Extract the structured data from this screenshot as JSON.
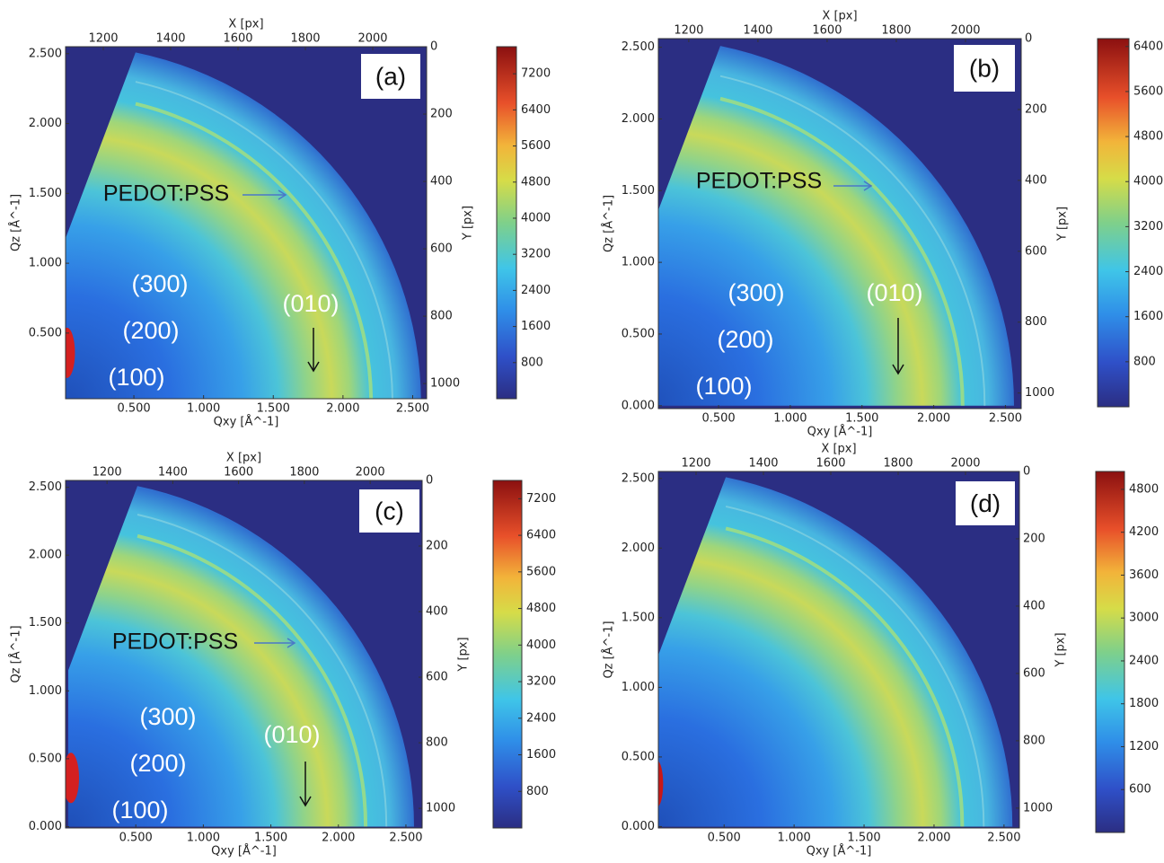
{
  "chart_data": [
    {
      "type": "heatmap",
      "title": "(a)",
      "xlabel": "Qxy [Å^-1]",
      "ylabel": "Qz [Å^-1]",
      "x2label": "X [px]",
      "y2label": "Y [px]",
      "xlim": [
        0.01,
        2.6
      ],
      "ylim": [
        0.03,
        2.55
      ],
      "xticks": [
        {
          "value": 0.5,
          "label": "0.500"
        },
        {
          "value": 1,
          "label": "1.000"
        },
        {
          "value": 1.5,
          "label": "1.500"
        },
        {
          "value": 2,
          "label": "2.000"
        },
        {
          "value": 2.5,
          "label": "2.500"
        }
      ],
      "yticks": [
        {
          "value": 0.5,
          "label": "0.500"
        },
        {
          "value": 1,
          "label": "1.000"
        },
        {
          "value": 1.5,
          "label": "1.500"
        },
        {
          "value": 2,
          "label": "2.000"
        },
        {
          "value": 2.5,
          "label": "2.500"
        }
      ],
      "x2lim": [
        1088,
        2160
      ],
      "x2ticks": [
        1200,
        1400,
        1600,
        1800,
        2000
      ],
      "y2lim": [
        1045,
        0
      ],
      "y2ticks": [
        0,
        200,
        400,
        600,
        800,
        1000
      ],
      "clim": [
        0,
        7800
      ],
      "cticks": [
        800,
        1600,
        2400,
        3200,
        4000,
        4800,
        5600,
        6400,
        7200
      ],
      "annotations": [
        "PEDOT:PSS",
        "(300)",
        "(200)",
        "(100)",
        "(010)"
      ]
    },
    {
      "type": "heatmap",
      "title": "(b)",
      "xlabel": "Qxy [Å^-1]",
      "ylabel": "Qz [Å^-1]",
      "x2label": "X [px]",
      "y2label": "Y [px]",
      "xlim": [
        0.08,
        2.61
      ],
      "ylim": [
        -0.02,
        2.56
      ],
      "xticks": [
        {
          "value": 0.5,
          "label": "0.500"
        },
        {
          "value": 1,
          "label": "1.000"
        },
        {
          "value": 1.5,
          "label": "1.500"
        },
        {
          "value": 2,
          "label": "2.000"
        },
        {
          "value": 2.5,
          "label": "2.500"
        }
      ],
      "yticks": [
        {
          "value": 0,
          "label": "0.000"
        },
        {
          "value": 0.5,
          "label": "0.500"
        },
        {
          "value": 1,
          "label": "1.000"
        },
        {
          "value": 1.5,
          "label": "1.500"
        },
        {
          "value": 2,
          "label": "2.000"
        },
        {
          "value": 2.5,
          "label": "2.500"
        }
      ],
      "x2lim": [
        1112,
        2161
      ],
      "x2ticks": [
        1200,
        1400,
        1600,
        1800,
        2000
      ],
      "y2lim": [
        1044,
        0
      ],
      "y2ticks": [
        0,
        200,
        400,
        600,
        800,
        1000
      ],
      "clim": [
        0,
        6540
      ],
      "cticks": [
        800,
        1600,
        2400,
        3200,
        4000,
        4800,
        5600,
        6400
      ],
      "annotations": [
        "PEDOT:PSS",
        "(300)",
        "(200)",
        "(100)",
        "(010)"
      ]
    },
    {
      "type": "heatmap",
      "title": "(c)",
      "xlabel": "Qxy [Å^-1]",
      "ylabel": "Qz [Å^-1]",
      "x2label": "X [px]",
      "y2label": "Y [px]",
      "xlim": [
        -0.02,
        2.62
      ],
      "ylim": [
        -0.01,
        2.55
      ],
      "xticks": [
        {
          "value": 0.5,
          "label": "0.500"
        },
        {
          "value": 1,
          "label": "1.000"
        },
        {
          "value": 1.5,
          "label": "1.500"
        },
        {
          "value": 2,
          "label": "2.000"
        },
        {
          "value": 2.5,
          "label": "2.500"
        }
      ],
      "yticks": [
        {
          "value": 0,
          "label": "0.000"
        },
        {
          "value": 0.5,
          "label": "0.500"
        },
        {
          "value": 1,
          "label": "1.000"
        },
        {
          "value": 1.5,
          "label": "1.500"
        },
        {
          "value": 2,
          "label": "2.000"
        },
        {
          "value": 2.5,
          "label": "2.500"
        }
      ],
      "x2lim": [
        1074,
        2158
      ],
      "x2ticks": [
        1200,
        1400,
        1600,
        1800,
        2000
      ],
      "y2lim": [
        1060,
        0
      ],
      "y2ticks": [
        0,
        200,
        400,
        600,
        800,
        1000
      ],
      "clim": [
        0,
        7600
      ],
      "cticks": [
        800,
        1600,
        2400,
        3200,
        4000,
        4800,
        5600,
        6400,
        7200
      ],
      "annotations": [
        "PEDOT:PSS",
        "(300)",
        "(200)",
        "(100)",
        "(010)"
      ]
    },
    {
      "type": "heatmap",
      "title": "(d)",
      "xlabel": "Qxy [Å^-1]",
      "ylabel": "Qz [Å^-1]",
      "x2label": "X [px]",
      "y2label": "Y [px]",
      "xlim": [
        0.03,
        2.61
      ],
      "ylim": [
        -0.01,
        2.55
      ],
      "xticks": [
        {
          "value": 0.5,
          "label": "0.500"
        },
        {
          "value": 1,
          "label": "1.000"
        },
        {
          "value": 1.5,
          "label": "1.500"
        },
        {
          "value": 2,
          "label": "2.000"
        },
        {
          "value": 2.5,
          "label": "2.500"
        }
      ],
      "yticks": [
        {
          "value": 0,
          "label": "0.000"
        },
        {
          "value": 0.5,
          "label": "0.500"
        },
        {
          "value": 1,
          "label": "1.000"
        },
        {
          "value": 1.5,
          "label": "1.500"
        },
        {
          "value": 2,
          "label": "2.000"
        },
        {
          "value": 2.5,
          "label": "2.500"
        }
      ],
      "x2lim": [
        1088,
        2160
      ],
      "x2ticks": [
        1200,
        1400,
        1600,
        1800,
        2000
      ],
      "y2lim": [
        1059,
        0
      ],
      "y2ticks": [
        0,
        200,
        400,
        600,
        800,
        1000
      ],
      "clim": [
        0,
        5050
      ],
      "cticks": [
        600,
        1200,
        1800,
        2400,
        3000,
        3600,
        4200,
        4800
      ],
      "annotations": []
    }
  ]
}
